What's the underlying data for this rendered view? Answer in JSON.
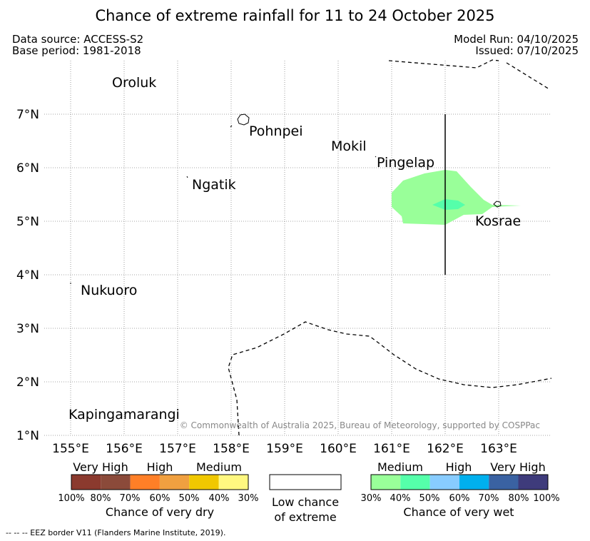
{
  "title": "Chance of extreme rainfall for 11 to 24 October 2025",
  "data_source": "Data source: ACCESS-S2",
  "base_period": "Base period: 1981-2018",
  "model_run": "Model Run: 04/10/2025",
  "issued": "Issued: 07/10/2025",
  "copyright": "© Commonwealth of Australia 2025, Bureau of Meteorology, supported by COSPPac",
  "footnote": "--  --  -- EEZ border V11 (Flanders Marine Institute, 2019).",
  "map": {
    "lon_labels": [
      "155°E",
      "156°E",
      "157°E",
      "158°E",
      "159°E",
      "160°E",
      "161°E",
      "162°E",
      "163°E"
    ],
    "lat_labels": [
      "7°N",
      "6°N",
      "5°N",
      "4°N",
      "3°N",
      "2°N",
      "1°N"
    ],
    "places": [
      {
        "name": "Oroluk"
      },
      {
        "name": "Pohnpei"
      },
      {
        "name": "Mokil"
      },
      {
        "name": "Pingelap"
      },
      {
        "name": "Ngatik"
      },
      {
        "name": "Kosrae"
      },
      {
        "name": "Nukuoro"
      },
      {
        "name": "Kapingamarangi"
      }
    ],
    "colors": {
      "wet_medium_30_40": "#99ff99",
      "wet_medium_40_50": "#55ffaa"
    }
  },
  "legend": {
    "dry": {
      "categories": [
        "Very High",
        "High",
        "Medium"
      ],
      "ticks": [
        "100%",
        "80%",
        "70%",
        "60%",
        "50%",
        "40%",
        "30%"
      ],
      "colors": [
        "#8b3a2e",
        "#8b4a3a",
        "#ff7f27",
        "#f0a040",
        "#f0c800",
        "#fff880"
      ],
      "title": "Chance of very dry"
    },
    "low": {
      "line1": "Low chance",
      "line2": "of extreme"
    },
    "wet": {
      "categories": [
        "Medium",
        "High",
        "Very High"
      ],
      "ticks": [
        "30%",
        "40%",
        "50%",
        "60%",
        "70%",
        "80%",
        "100%"
      ],
      "colors": [
        "#99ff99",
        "#55ffaa",
        "#88ccff",
        "#00b0ee",
        "#3a62a2",
        "#3e3b7b"
      ],
      "title": "Chance of very wet"
    }
  }
}
